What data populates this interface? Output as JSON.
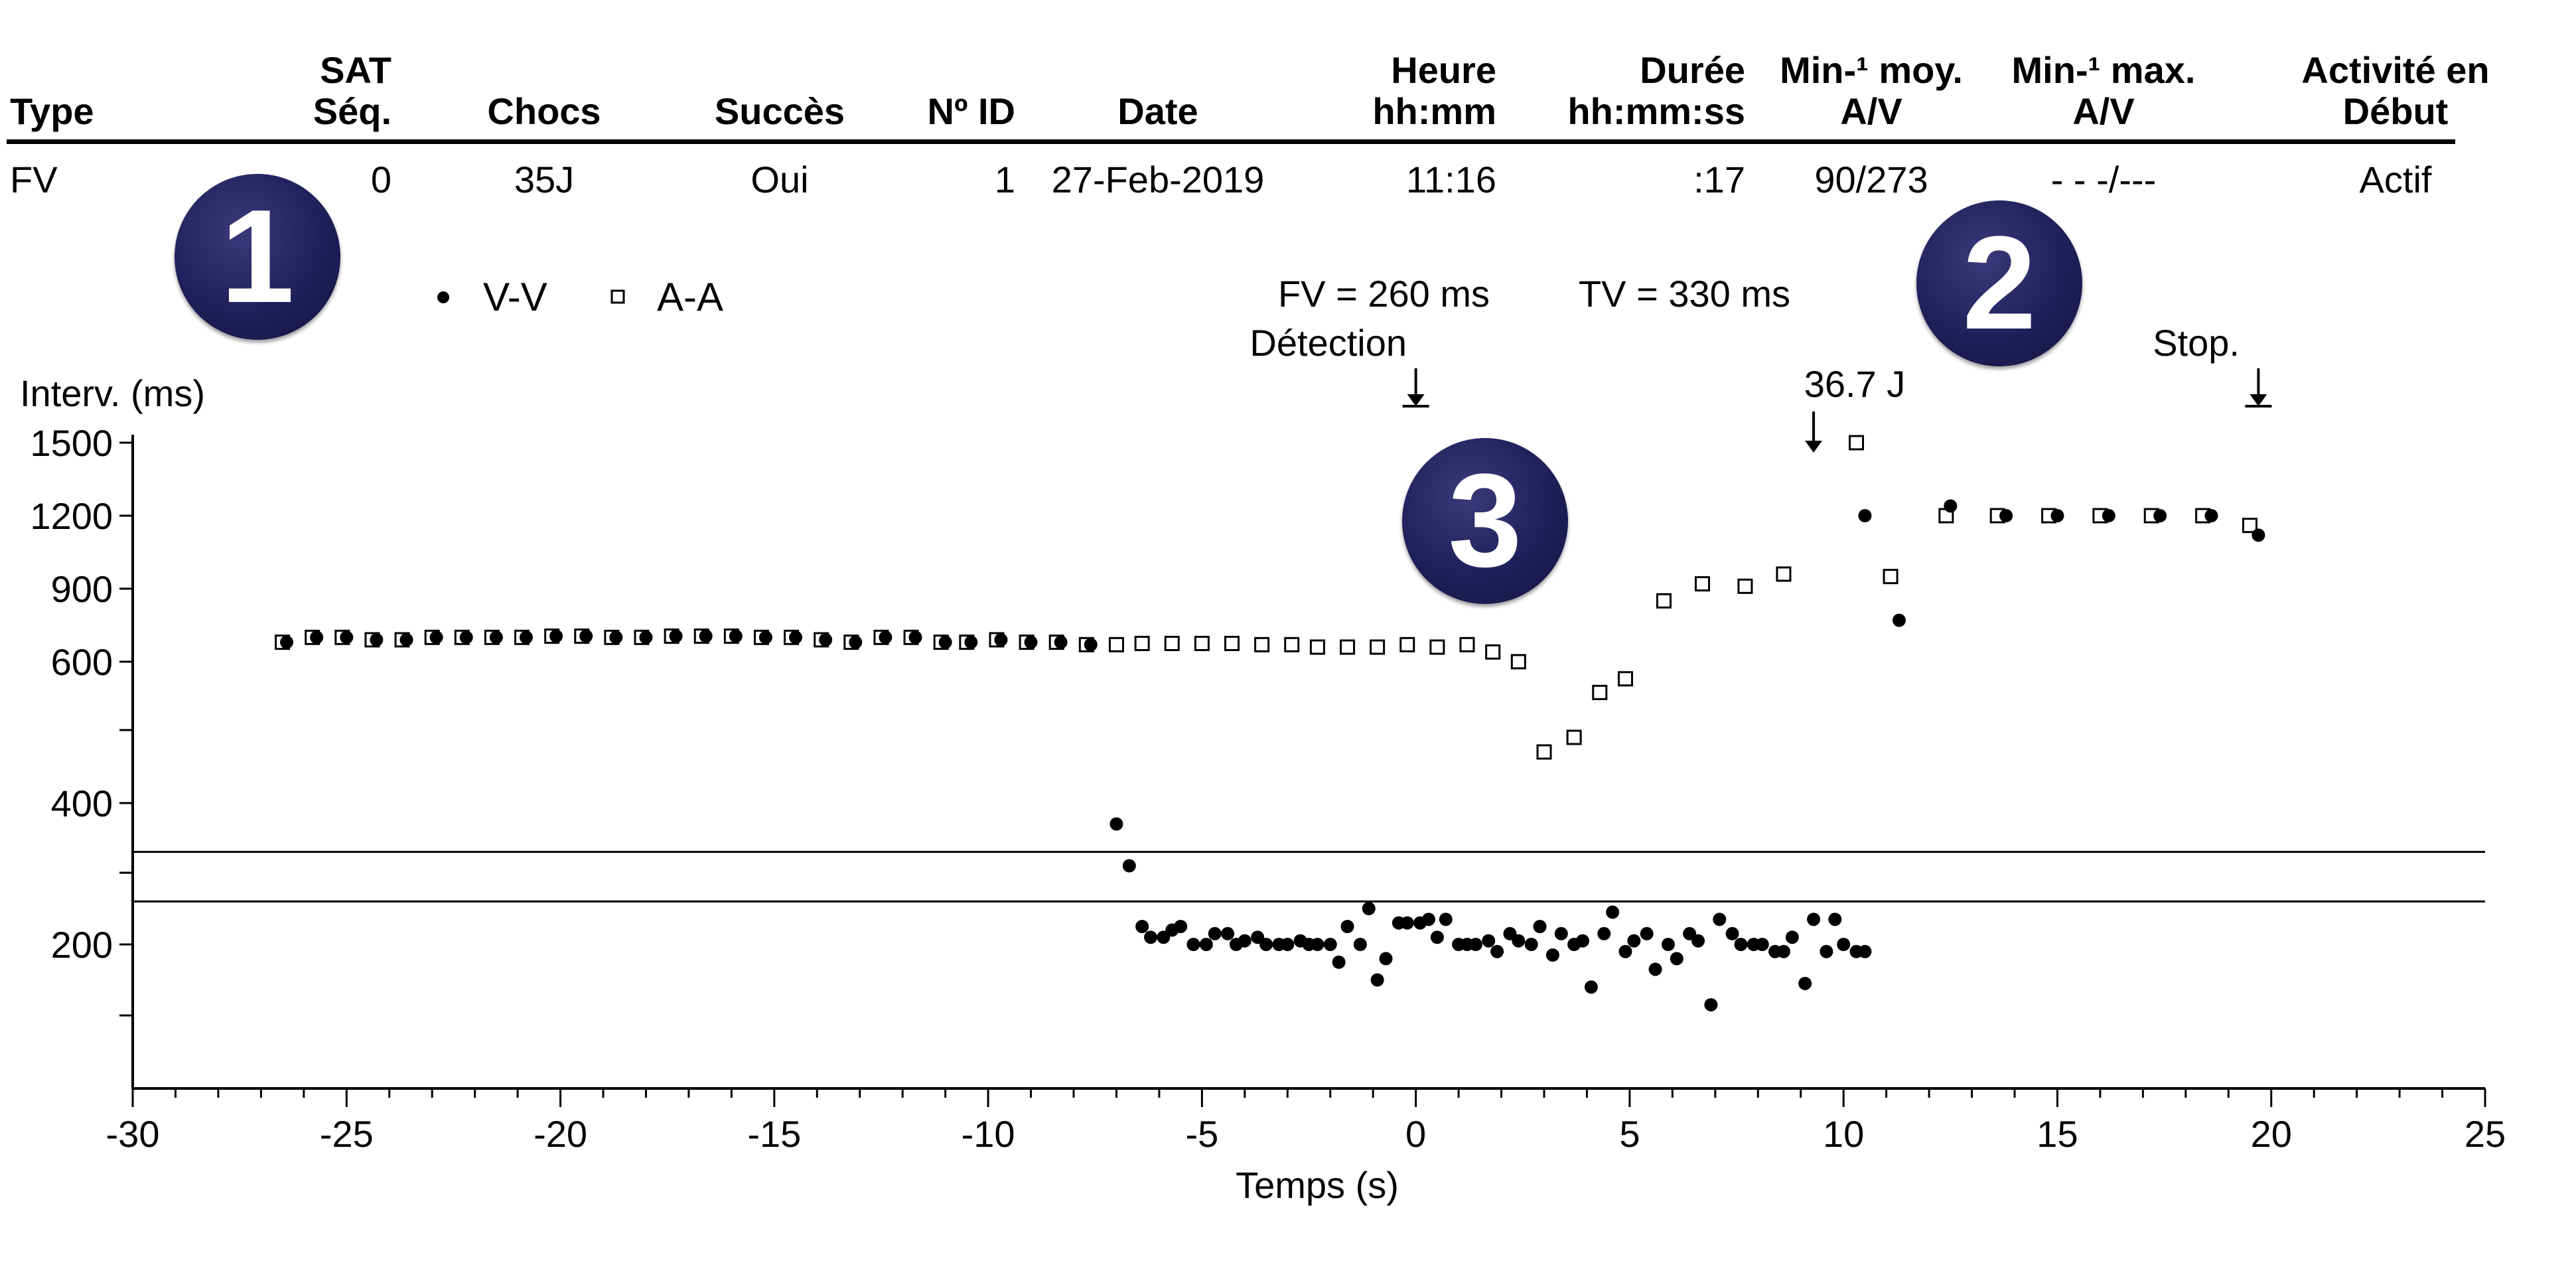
{
  "table": {
    "headers": [
      {
        "line1": "",
        "line2": "Type"
      },
      {
        "line1": "SAT",
        "line2": "Séq."
      },
      {
        "line1": "",
        "line2": "Chocs"
      },
      {
        "line1": "",
        "line2": "Succès"
      },
      {
        "line1": "",
        "line2": "Nº ID"
      },
      {
        "line1": "",
        "line2": "Date"
      },
      {
        "line1": "Heure",
        "line2": "hh:mm"
      },
      {
        "line1": "Durée",
        "line2": "hh:mm:ss"
      },
      {
        "line1": "Min-¹ moy.",
        "line2": "A/V"
      },
      {
        "line1": "Min-¹ max.",
        "line2": "A/V"
      },
      {
        "line1": "Activité en",
        "line2": "Début"
      }
    ],
    "row": [
      "FV",
      "0",
      "35J",
      "Oui",
      "1",
      "27-Feb-2019",
      "11:16",
      ":17",
      "90/273",
      "- - -/---",
      "Actif"
    ]
  },
  "badges": [
    "1",
    "2",
    "3"
  ],
  "legend": {
    "vv": "V-V",
    "aa": "A-A"
  },
  "annotations": {
    "fv": "FV = 260 ms",
    "tv": "TV = 330 ms",
    "detection": "Détection",
    "shock": "36.7 J",
    "stop": "Stop."
  },
  "chart_data": {
    "type": "scatter",
    "xlabel": "Temps (s)",
    "ylabel": "Interv. (ms)",
    "xlim": [
      -30,
      25
    ],
    "xticks": [
      -30,
      -25,
      -20,
      -15,
      -10,
      -5,
      0,
      5,
      10,
      15,
      20,
      25
    ],
    "yticks_labeled": [
      1500,
      1200,
      900,
      600,
      400,
      200
    ],
    "yticks_unlabeled": [
      500,
      300,
      100
    ],
    "threshold_lines": [
      330,
      260
    ],
    "event_markers": [
      {
        "label": "Détection",
        "x": 0
      },
      {
        "label": "36.7 J",
        "x": 9.3
      },
      {
        "label": "Stop.",
        "x": 19.7
      }
    ],
    "series": [
      {
        "name": "V-V",
        "marker": "filled-circle",
        "points": [
          [
            -26.4,
            680
          ],
          [
            -25.7,
            700
          ],
          [
            -25.0,
            700
          ],
          [
            -24.3,
            690
          ],
          [
            -23.6,
            690
          ],
          [
            -22.9,
            700
          ],
          [
            -22.2,
            700
          ],
          [
            -21.5,
            700
          ],
          [
            -20.8,
            700
          ],
          [
            -20.1,
            705
          ],
          [
            -19.4,
            705
          ],
          [
            -18.7,
            700
          ],
          [
            -18.0,
            700
          ],
          [
            -17.3,
            705
          ],
          [
            -16.6,
            705
          ],
          [
            -15.9,
            705
          ],
          [
            -15.2,
            700
          ],
          [
            -14.5,
            700
          ],
          [
            -13.8,
            690
          ],
          [
            -13.1,
            680
          ],
          [
            -12.4,
            700
          ],
          [
            -11.7,
            700
          ],
          [
            -11.0,
            680
          ],
          [
            -10.4,
            680
          ],
          [
            -9.7,
            690
          ],
          [
            -9.0,
            680
          ],
          [
            -8.3,
            680
          ],
          [
            -7.6,
            670
          ],
          [
            -7.0,
            370
          ],
          [
            -6.7,
            310
          ],
          [
            -6.4,
            225
          ],
          [
            -6.2,
            210
          ],
          [
            -5.9,
            210
          ],
          [
            -5.7,
            220
          ],
          [
            -5.5,
            225
          ],
          [
            -5.2,
            200
          ],
          [
            -4.9,
            200
          ],
          [
            -4.7,
            215
          ],
          [
            -4.4,
            215
          ],
          [
            -4.2,
            200
          ],
          [
            -4.0,
            205
          ],
          [
            -3.7,
            210
          ],
          [
            -3.5,
            200
          ],
          [
            -3.2,
            200
          ],
          [
            -3.0,
            200
          ],
          [
            -2.7,
            205
          ],
          [
            -2.5,
            200
          ],
          [
            -2.3,
            200
          ],
          [
            -2.0,
            200
          ],
          [
            -1.8,
            175
          ],
          [
            -1.6,
            225
          ],
          [
            -1.3,
            200
          ],
          [
            -1.1,
            250
          ],
          [
            -0.9,
            150
          ],
          [
            -0.7,
            180
          ],
          [
            -0.4,
            230
          ],
          [
            -0.2,
            230
          ],
          [
            0.1,
            230
          ],
          [
            0.3,
            235
          ],
          [
            0.5,
            210
          ],
          [
            0.7,
            235
          ],
          [
            1.0,
            200
          ],
          [
            1.2,
            200
          ],
          [
            1.4,
            200
          ],
          [
            1.7,
            205
          ],
          [
            1.9,
            190
          ],
          [
            2.2,
            215
          ],
          [
            2.4,
            205
          ],
          [
            2.7,
            200
          ],
          [
            2.9,
            225
          ],
          [
            3.2,
            185
          ],
          [
            3.4,
            215
          ],
          [
            3.7,
            200
          ],
          [
            3.9,
            205
          ],
          [
            4.1,
            140
          ],
          [
            4.4,
            215
          ],
          [
            4.6,
            245
          ],
          [
            4.9,
            190
          ],
          [
            5.1,
            205
          ],
          [
            5.4,
            215
          ],
          [
            5.6,
            165
          ],
          [
            5.9,
            200
          ],
          [
            6.1,
            180
          ],
          [
            6.4,
            215
          ],
          [
            6.6,
            205
          ],
          [
            6.9,
            115
          ],
          [
            7.1,
            235
          ],
          [
            7.4,
            215
          ],
          [
            7.6,
            200
          ],
          [
            7.9,
            200
          ],
          [
            8.1,
            200
          ],
          [
            8.4,
            190
          ],
          [
            8.6,
            190
          ],
          [
            8.8,
            210
          ],
          [
            9.1,
            145
          ],
          [
            9.3,
            235
          ],
          [
            9.6,
            190
          ],
          [
            9.8,
            235
          ],
          [
            10.0,
            200
          ],
          [
            10.3,
            190
          ],
          [
            10.5,
            190
          ],
          [
            10.5,
            1200
          ],
          [
            11.3,
            770
          ],
          [
            12.5,
            1240
          ],
          [
            13.8,
            1200
          ],
          [
            15.0,
            1200
          ],
          [
            16.2,
            1200
          ],
          [
            17.4,
            1200
          ],
          [
            18.6,
            1200
          ],
          [
            19.7,
            1120
          ]
        ]
      },
      {
        "name": "A-A",
        "marker": "open-square",
        "points": [
          [
            -26.5,
            680
          ],
          [
            -25.8,
            700
          ],
          [
            -25.1,
            700
          ],
          [
            -24.4,
            690
          ],
          [
            -23.7,
            690
          ],
          [
            -23.0,
            700
          ],
          [
            -22.3,
            700
          ],
          [
            -21.6,
            700
          ],
          [
            -20.9,
            700
          ],
          [
            -20.2,
            705
          ],
          [
            -19.5,
            705
          ],
          [
            -18.8,
            700
          ],
          [
            -18.1,
            700
          ],
          [
            -17.4,
            705
          ],
          [
            -16.7,
            705
          ],
          [
            -16.0,
            705
          ],
          [
            -15.3,
            700
          ],
          [
            -14.6,
            700
          ],
          [
            -13.9,
            690
          ],
          [
            -13.2,
            680
          ],
          [
            -12.5,
            700
          ],
          [
            -11.8,
            700
          ],
          [
            -11.1,
            680
          ],
          [
            -10.5,
            680
          ],
          [
            -9.8,
            690
          ],
          [
            -9.1,
            680
          ],
          [
            -8.4,
            680
          ],
          [
            -7.7,
            670
          ],
          [
            -7.0,
            670
          ],
          [
            -6.4,
            675
          ],
          [
            -5.7,
            675
          ],
          [
            -5.0,
            675
          ],
          [
            -4.3,
            675
          ],
          [
            -3.6,
            670
          ],
          [
            -2.9,
            670
          ],
          [
            -2.3,
            660
          ],
          [
            -1.6,
            660
          ],
          [
            -0.9,
            660
          ],
          [
            -0.2,
            670
          ],
          [
            0.5,
            660
          ],
          [
            1.2,
            670
          ],
          [
            1.8,
            640
          ],
          [
            2.4,
            600
          ],
          [
            3.0,
            470
          ],
          [
            3.7,
            490
          ],
          [
            4.3,
            555
          ],
          [
            4.9,
            575
          ],
          [
            5.8,
            850
          ],
          [
            6.7,
            920
          ],
          [
            7.7,
            910
          ],
          [
            8.6,
            960
          ],
          [
            10.3,
            1500
          ],
          [
            11.1,
            950
          ],
          [
            12.4,
            1200
          ],
          [
            13.6,
            1200
          ],
          [
            14.8,
            1200
          ],
          [
            16.0,
            1200
          ],
          [
            17.2,
            1200
          ],
          [
            18.4,
            1200
          ],
          [
            19.5,
            1160
          ]
        ]
      }
    ]
  }
}
